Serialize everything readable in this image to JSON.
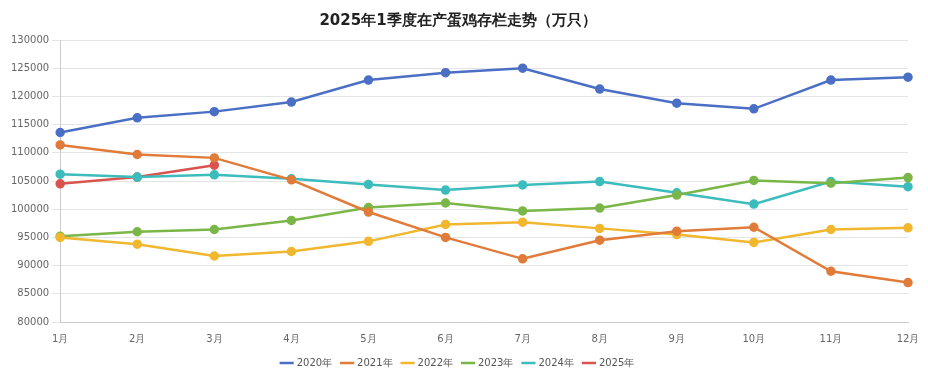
{
  "chart_data": {
    "type": "line",
    "title": "2025年1季度在产蛋鸡存栏走势（万只）",
    "categories": [
      "1月",
      "2月",
      "3月",
      "4月",
      "5月",
      "6月",
      "7月",
      "8月",
      "9月",
      "10月",
      "11月",
      "12月"
    ],
    "series": [
      {
        "name": "2020年",
        "color": "#4a6fc4",
        "values": [
          113600,
          116200,
          117300,
          119000,
          122900,
          124200,
          125000,
          121300,
          118800,
          117800,
          122900,
          123400
        ]
      },
      {
        "name": "2021年",
        "color": "#e07b39",
        "values": [
          111400,
          109700,
          109100,
          105200,
          99500,
          95000,
          91200,
          94500,
          96100,
          96800,
          89000,
          87000
        ]
      },
      {
        "name": "2022年",
        "color": "#f0b72f",
        "values": [
          95000,
          93800,
          91700,
          92500,
          94300,
          97300,
          97700,
          96600,
          95500,
          94100,
          96400,
          96700
        ]
      },
      {
        "name": "2023年",
        "color": "#7ab648",
        "values": [
          95200,
          96000,
          96400,
          98000,
          100300,
          101100,
          99700,
          100200,
          102500,
          105100,
          104600,
          105600
        ]
      },
      {
        "name": "2024年",
        "color": "#3cbcbc",
        "values": [
          106200,
          105700,
          106100,
          105400,
          104400,
          103400,
          104300,
          104900,
          102900,
          100900,
          104900,
          104000
        ]
      },
      {
        "name": "2025年",
        "color": "#d9534f",
        "values": [
          104500,
          105700,
          107800,
          null,
          null,
          null,
          null,
          null,
          null,
          null,
          null,
          null
        ]
      }
    ],
    "ylim": [
      80000,
      130000
    ],
    "yticks": [
      80000,
      85000,
      90000,
      95000,
      100000,
      105000,
      110000,
      115000,
      120000,
      125000,
      130000
    ],
    "grid": true,
    "legend": "bottom",
    "marker": "circle"
  }
}
